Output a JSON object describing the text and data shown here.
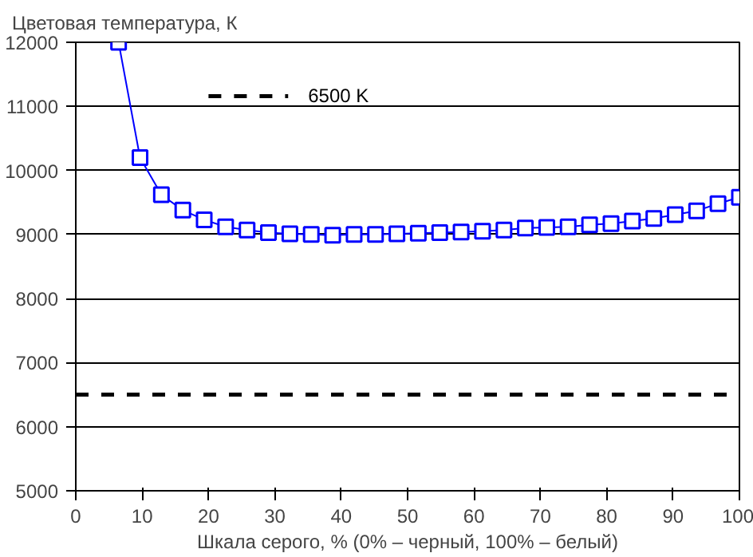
{
  "chart_data": {
    "type": "line",
    "ylabel": "Цветовая температура, К",
    "xlabel": "Шкала серого, % (0% – черный, 100% – белый)",
    "x": [
      6.45,
      9.68,
      12.9,
      16.13,
      19.35,
      22.58,
      25.81,
      29.03,
      32.26,
      35.48,
      38.71,
      41.94,
      45.16,
      48.39,
      51.61,
      54.84,
      58.06,
      61.29,
      64.52,
      67.74,
      70.97,
      74.19,
      77.42,
      80.65,
      83.87,
      87.1,
      90.32,
      93.55,
      96.77,
      100
    ],
    "series": [
      {
        "color": "#0000ff",
        "values": [
          12000,
          10200,
          9620,
          9380,
          9230,
          9120,
          9070,
          9030,
          9010,
          9000,
          8990,
          9000,
          9000,
          9010,
          9020,
          9030,
          9040,
          9050,
          9070,
          9100,
          9110,
          9120,
          9150,
          9170,
          9210,
          9250,
          9310,
          9370,
          9480,
          9580
        ]
      }
    ],
    "marker": "square",
    "line_style": "solid",
    "xlim": [
      0,
      100
    ],
    "xticks": [
      0,
      10,
      20,
      30,
      40,
      50,
      60,
      70,
      80,
      90,
      100
    ],
    "ylim": [
      5000,
      12000
    ],
    "yticks": [
      5000,
      6000,
      7000,
      8000,
      9000,
      10000,
      11000,
      12000
    ],
    "grid": "y",
    "legend": "top",
    "ref_lines": [
      {
        "axis": "y",
        "value": 6500,
        "label": "6500 K",
        "color": "#000000",
        "line_style": "dashed"
      }
    ]
  }
}
